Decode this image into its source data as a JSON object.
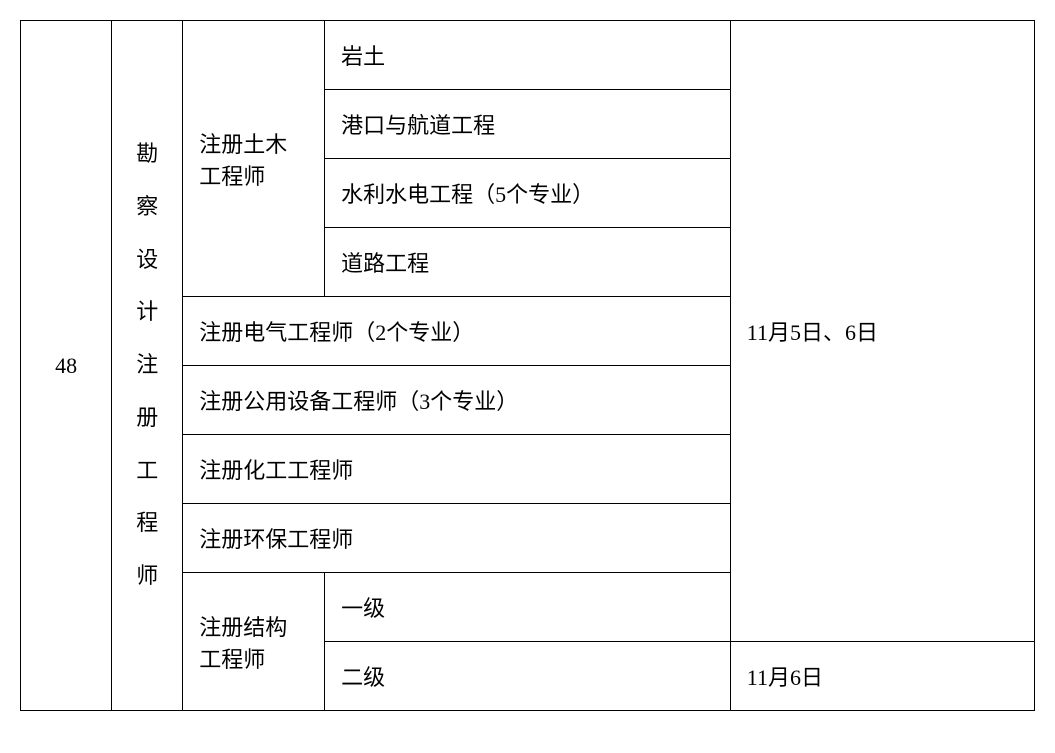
{
  "row_index": "48",
  "category_vertical": [
    "勘",
    "察",
    "设",
    "计",
    "注",
    "册",
    "工",
    "程",
    "师"
  ],
  "civil_engineer": "注册土木工程师",
  "civil_sub": {
    "geotech": "岩土",
    "port": "港口与航道工程",
    "hydraulic": "水利水电工程（5个专业）",
    "road": "道路工程"
  },
  "electrical": "注册电气工程师（2个专业）",
  "utility": "注册公用设备工程师（3个专业）",
  "chemical": "注册化工工程师",
  "environmental": "注册环保工程师",
  "structural": "注册结构工程师",
  "structural_sub": {
    "level1": "一级",
    "level2": "二级"
  },
  "date1": "11月5日、6日",
  "date2": "11月6日",
  "style": {
    "font_size": 22,
    "border_color": "#000000",
    "background": "#ffffff",
    "text_color": "#000000"
  }
}
